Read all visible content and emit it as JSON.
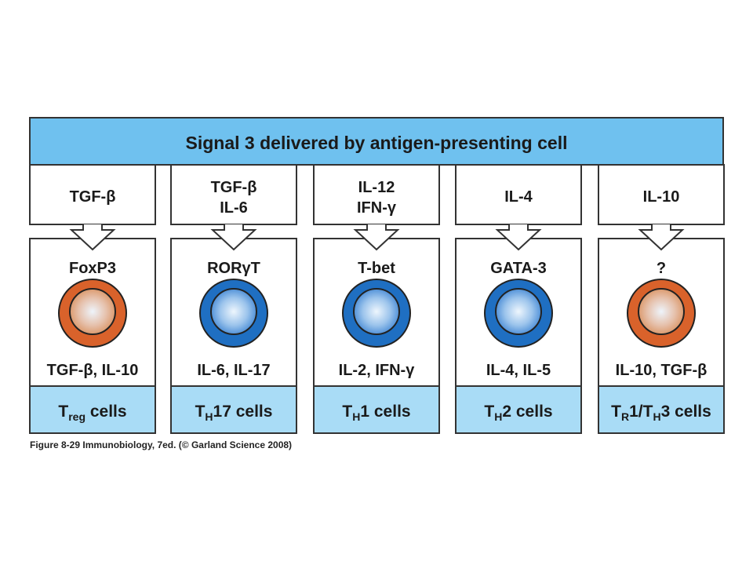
{
  "header": {
    "title": "Signal 3 delivered by antigen-presenting cell"
  },
  "colors": {
    "header_bg": "#6fc1ef",
    "footer_bg": "#a9dcf6",
    "border": "#333333",
    "orange_cell": "#d9622b",
    "blue_cell": "#1f6fc2"
  },
  "columns": [
    {
      "signal_lines": [
        "TGF-β"
      ],
      "transcription_factor": "FoxP3",
      "cell_color": "orange",
      "cytokines": "TGF-β, IL-10",
      "cell_type": {
        "main": "T",
        "sub": "reg",
        "suffix": " cells"
      }
    },
    {
      "signal_lines": [
        "TGF-β",
        "IL-6"
      ],
      "transcription_factor": "RORγT",
      "cell_color": "blue",
      "cytokines": "IL-6, IL-17",
      "cell_type": {
        "main": "T",
        "sub": "H",
        "suffix": "17 cells"
      }
    },
    {
      "signal_lines": [
        "IL-12",
        "IFN-γ"
      ],
      "transcription_factor": "T-bet",
      "cell_color": "blue",
      "cytokines": "IL-2, IFN-γ",
      "cell_type": {
        "main": "T",
        "sub": "H",
        "suffix": "1 cells"
      }
    },
    {
      "signal_lines": [
        "IL-4"
      ],
      "transcription_factor": "GATA-3",
      "cell_color": "blue",
      "cytokines": "IL-4, IL-5",
      "cell_type": {
        "main": "T",
        "sub": "H",
        "suffix": "2 cells"
      }
    },
    {
      "signal_lines": [
        "IL-10"
      ],
      "transcription_factor": "?",
      "cell_color": "orange",
      "cytokines": "IL-10, TGF-β",
      "cell_type": {
        "main": "T",
        "sub": "R",
        "suffix": "1/T",
        "sub2": "H",
        "suffix2": "3 cells"
      }
    }
  ],
  "caption": "Figure 8-29 Immunobiology, 7ed. (© Garland Science 2008)"
}
